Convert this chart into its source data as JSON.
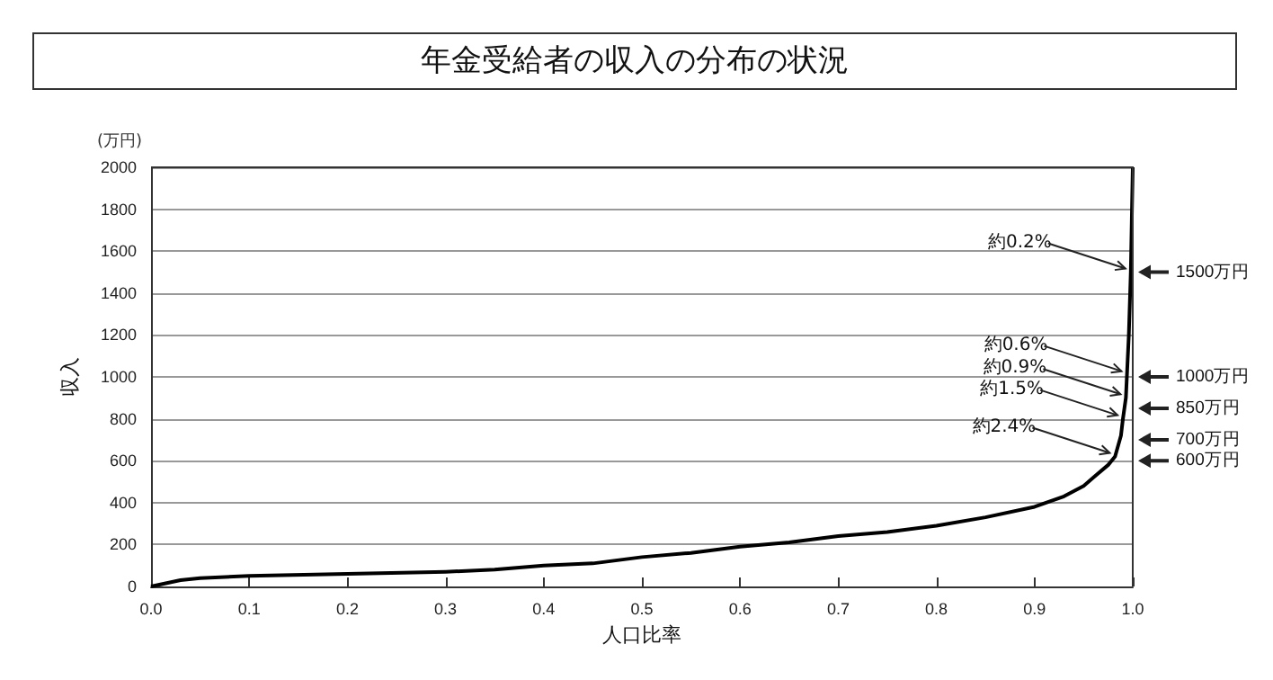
{
  "chart_data": {
    "type": "line",
    "title": "年金受給者の収入の分布の状況",
    "xlabel": "人口比率",
    "ylabel": "収入",
    "x": [
      0,
      0.03,
      0.05,
      0.1,
      0.2,
      0.3,
      0.35,
      0.4,
      0.45,
      0.5,
      0.55,
      0.6,
      0.65,
      0.7,
      0.75,
      0.8,
      0.85,
      0.9,
      0.93,
      0.95,
      0.96,
      0.975,
      0.982,
      0.988,
      0.99,
      0.993,
      0.994,
      0.996,
      0.998,
      1.0
    ],
    "series": [
      {
        "color": "#000000",
        "values": [
          0,
          30,
          40,
          50,
          60,
          70,
          80,
          100,
          110,
          140,
          160,
          190,
          210,
          240,
          260,
          290,
          330,
          380,
          430,
          480,
          520,
          580,
          620,
          720,
          800,
          900,
          1000,
          1200,
          1500,
          2000
        ]
      }
    ],
    "xlim": [
      0,
      1
    ],
    "xticks": [
      {
        "value": 0,
        "label": "0.0"
      },
      {
        "value": 0.1,
        "label": "0.1"
      },
      {
        "value": 0.2,
        "label": "0.2"
      },
      {
        "value": 0.3,
        "label": "0.3"
      },
      {
        "value": 0.4,
        "label": "0.4"
      },
      {
        "value": 0.5,
        "label": "0.5"
      },
      {
        "value": 0.6,
        "label": "0.6"
      },
      {
        "value": 0.7,
        "label": "0.7"
      },
      {
        "value": 0.8,
        "label": "0.8"
      },
      {
        "value": 0.9,
        "label": "0.9"
      },
      {
        "value": 1,
        "label": "1.0"
      }
    ],
    "ylim": [
      0,
      2000
    ],
    "yticks": [
      0,
      200,
      400,
      600,
      800,
      1000,
      1200,
      1400,
      1600,
      1800,
      2000
    ],
    "grid": "y",
    "marker": "none",
    "line_style": "solid",
    "y2lim": [
      0,
      2000
    ],
    "y2ticks": [
      {
        "value": 1500,
        "label": "1500万円"
      },
      {
        "value": 1000,
        "label": "1000万円"
      },
      {
        "value": 850,
        "label": "850万円"
      },
      {
        "value": 700,
        "label": "700万円"
      },
      {
        "value": 600,
        "label": "600万円"
      }
    ],
    "annotations": [
      "(万円)",
      {
        "text": "約0.2%",
        "x": 0.998,
        "y": 1500
      },
      {
        "text": "約0.6%",
        "x": 0.994,
        "y": 1010
      },
      {
        "text": "約0.9%",
        "x": 0.993,
        "y": 900
      },
      {
        "text": "約1.5%",
        "x": 0.99,
        "y": 800
      },
      {
        "text": "約2.4%",
        "x": 0.982,
        "y": 620
      }
    ]
  }
}
